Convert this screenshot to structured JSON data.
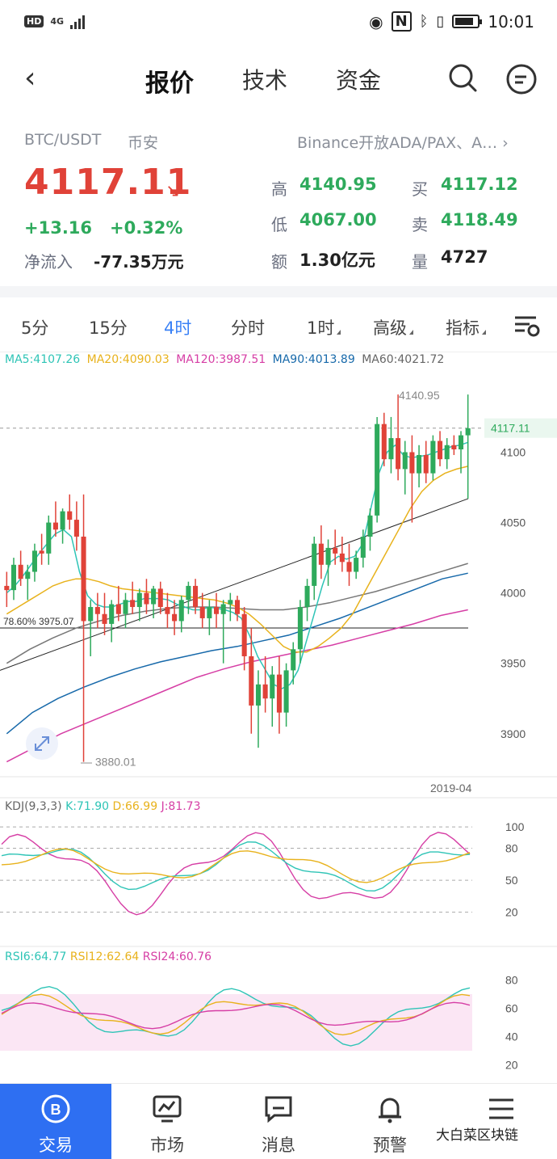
{
  "status_bar": {
    "hd": "HD",
    "network": "4G",
    "time": "10:01"
  },
  "nav": {
    "tabs": [
      {
        "label": "报价"
      },
      {
        "label": "技术"
      },
      {
        "label": "资金"
      }
    ]
  },
  "quote": {
    "pair": "BTC/USDT",
    "exchange": "币安",
    "market_link": "Binance开放ADA/PAX、A… ›",
    "price": "4117.11",
    "change": "+13.16",
    "change_pct": "+0.32%",
    "netflow_label": "净流入",
    "netflow_value": "-77.35万元",
    "stats": {
      "high_label": "高",
      "high": "4140.95",
      "low_label": "低",
      "low": "4067.00",
      "amount_label": "额",
      "amount": "1.30亿元",
      "buy_label": "买",
      "buy": "4117.12",
      "sell_label": "卖",
      "sell": "4118.49",
      "volume_label": "量",
      "volume": "4727"
    }
  },
  "period_tabs": [
    {
      "label": "5分"
    },
    {
      "label": "15分"
    },
    {
      "label": "4时"
    },
    {
      "label": "分时"
    },
    {
      "label": "1时"
    },
    {
      "label": "高级"
    },
    {
      "label": "指标"
    }
  ],
  "colors": {
    "up": "#2eaa5c",
    "down": "#e04238",
    "accent": "#3b82f6",
    "ma5": "#2ec4b6",
    "ma20": "#e8b21c",
    "ma120": "#d63ea5",
    "ma90": "#1769aa",
    "ma60": "#777777"
  },
  "ma_legend": {
    "ma5": "MA5:4107.26",
    "ma20": "MA20:4090.03",
    "ma120": "MA120:3987.51",
    "ma90": "MA90:4013.89",
    "ma60": "MA60:4021.72"
  },
  "kdj_legend": {
    "title": "KDJ(9,3,3)",
    "k": "K:71.90",
    "d": "D:66.99",
    "j": "J:81.73"
  },
  "rsi_legend": {
    "r6": "RSI6:64.77",
    "r12": "RSI12:62.64",
    "r24": "RSI24:60.76"
  },
  "chart_data": {
    "type": "candlestick",
    "y_ticks": [
      "4100",
      "4050",
      "4000",
      "3950",
      "3900"
    ],
    "ylim": [
      3870,
      4160
    ],
    "current_price_label": "4117.11",
    "max_label": "4140.95",
    "min_label": "3880.01",
    "fib_label": "78.60% 3975.07",
    "fib_value": 3975.07,
    "x_label": "2019-04",
    "candles": [
      [
        4005,
        4015,
        3990,
        4002
      ],
      [
        4002,
        4025,
        3995,
        4020
      ],
      [
        4020,
        4030,
        4005,
        4010
      ],
      [
        4010,
        4020,
        3995,
        4015
      ],
      [
        4015,
        4035,
        4008,
        4030
      ],
      [
        4030,
        4042,
        4020,
        4028
      ],
      [
        4028,
        4055,
        4020,
        4050
      ],
      [
        4050,
        4065,
        4040,
        4045
      ],
      [
        4045,
        4060,
        4035,
        4058
      ],
      [
        4058,
        4070,
        4045,
        4052
      ],
      [
        4052,
        4065,
        4030,
        4040
      ],
      [
        4040,
        4070,
        3880,
        3980
      ],
      [
        3980,
        3995,
        3955,
        3990
      ],
      [
        3990,
        4000,
        3975,
        3985
      ],
      [
        3985,
        4000,
        3970,
        3978
      ],
      [
        3978,
        3995,
        3965,
        3992
      ],
      [
        3992,
        4005,
        3980,
        3985
      ],
      [
        3985,
        4000,
        3975,
        3995
      ],
      [
        3995,
        4008,
        3985,
        3990
      ],
      [
        3990,
        4003,
        3980,
        4000
      ],
      [
        4000,
        4010,
        3985,
        3992
      ],
      [
        3992,
        4005,
        3982,
        4003
      ],
      [
        4003,
        4008,
        3985,
        3990
      ],
      [
        3990,
        4000,
        3975,
        3985
      ],
      [
        3985,
        3995,
        3970,
        3980
      ],
      [
        3980,
        3998,
        3972,
        3995
      ],
      [
        3995,
        4008,
        3985,
        4005
      ],
      [
        4005,
        4010,
        3985,
        3990
      ],
      [
        3990,
        4000,
        3975,
        3982
      ],
      [
        3982,
        3995,
        3970,
        3990
      ],
      [
        3990,
        4000,
        3975,
        3985
      ],
      [
        3985,
        3995,
        3950,
        3992
      ],
      [
        3992,
        4000,
        3980,
        3995
      ],
      [
        3995,
        3998,
        3980,
        3985
      ],
      [
        3985,
        3990,
        3945,
        3955
      ],
      [
        3955,
        3975,
        3900,
        3920
      ],
      [
        3920,
        3945,
        3890,
        3935
      ],
      [
        3935,
        3955,
        3915,
        3925
      ],
      [
        3925,
        3948,
        3905,
        3942
      ],
      [
        3942,
        3955,
        3900,
        3915
      ],
      [
        3915,
        3950,
        3905,
        3945
      ],
      [
        3945,
        3965,
        3935,
        3960
      ],
      [
        3960,
        3995,
        3950,
        3990
      ],
      [
        3990,
        4010,
        3980,
        4005
      ],
      [
        4005,
        4040,
        3995,
        4035
      ],
      [
        4035,
        4048,
        4010,
        4020
      ],
      [
        4020,
        4038,
        4005,
        4032
      ],
      [
        4032,
        4045,
        4020,
        4028
      ],
      [
        4028,
        4040,
        4015,
        4022
      ],
      [
        4022,
        4035,
        4005,
        4015
      ],
      [
        4015,
        4030,
        4010,
        4025
      ],
      [
        4025,
        4045,
        4018,
        4040
      ],
      [
        4040,
        4060,
        4030,
        4055
      ],
      [
        4055,
        4125,
        4050,
        4120
      ],
      [
        4120,
        4128,
        4090,
        4095
      ],
      [
        4095,
        4125,
        4085,
        4110
      ],
      [
        4110,
        4141,
        4080,
        4088
      ],
      [
        4088,
        4108,
        4070,
        4100
      ],
      [
        4100,
        4112,
        4050,
        4085
      ],
      [
        4085,
        4105,
        4075,
        4098
      ],
      [
        4098,
        4108,
        4078,
        4085
      ],
      [
        4085,
        4112,
        4080,
        4108
      ],
      [
        4108,
        4115,
        4090,
        4095
      ],
      [
        4095,
        4110,
        4088,
        4105
      ],
      [
        4105,
        4112,
        4098,
        4102
      ],
      [
        4102,
        4115,
        4085,
        4112
      ],
      [
        4112,
        4141,
        4067,
        4117
      ]
    ],
    "ma5": [
      4000,
      4005,
      4012,
      4020,
      4028,
      4035,
      4042,
      4045,
      4040,
      4015,
      3998,
      3992,
      3990,
      3990,
      3992,
      3994,
      3994,
      3996,
      3996,
      3996,
      3995,
      3992,
      3990,
      3988,
      3988,
      3990,
      3989,
      3988,
      3986,
      3982,
      3970,
      3955,
      3945,
      3935,
      3932,
      3935,
      3945,
      3965,
      3985,
      4005,
      4022,
      4026,
      4024,
      4026,
      4035,
      4060,
      4085,
      4100,
      4105,
      4098,
      4096,
      4097,
      4098,
      4100,
      4102,
      4104,
      4105,
      4107
    ],
    "ma20": [
      3985,
      3990,
      3995,
      4000,
      4005,
      4008,
      4010,
      4010,
      4008,
      4005,
      4003,
      4002,
      4001,
      4000,
      3999,
      3998,
      3997,
      3996,
      3995,
      3993,
      3990,
      3985,
      3978,
      3970,
      3962,
      3958,
      3958,
      3962,
      3968,
      3975,
      3985,
      4000,
      4015,
      4030,
      4045,
      4060,
      4072,
      4080,
      4085,
      4088,
      4090
    ],
    "ma60": [
      3950,
      3960,
      3968,
      3975,
      3980,
      3984,
      3987,
      3989,
      3990,
      3990,
      3989,
      3988,
      3988,
      3990,
      3993,
      3997,
      4001,
      4006,
      4011,
      4016,
      4021
    ],
    "ma90": [
      3900,
      3915,
      3925,
      3933,
      3940,
      3946,
      3951,
      3955,
      3959,
      3962,
      3966,
      3970,
      3976,
      3982,
      3989,
      3996,
      4003,
      4010,
      4014
    ],
    "ma120": [
      3880,
      3890,
      3900,
      3908,
      3916,
      3924,
      3932,
      3940,
      3946,
      3951,
      3955,
      3959,
      3963,
      3968,
      3973,
      3978,
      3984,
      3988
    ],
    "kdj_ticks": [
      "100",
      "80",
      "50",
      "20"
    ],
    "rsi_ticks": [
      "80",
      "60",
      "40",
      "20"
    ]
  },
  "bottom_nav": [
    {
      "label": "交易"
    },
    {
      "label": "市场"
    },
    {
      "label": "消息"
    },
    {
      "label": "预警"
    },
    {
      "label": "更多"
    }
  ],
  "watermark": "大白菜区块链"
}
